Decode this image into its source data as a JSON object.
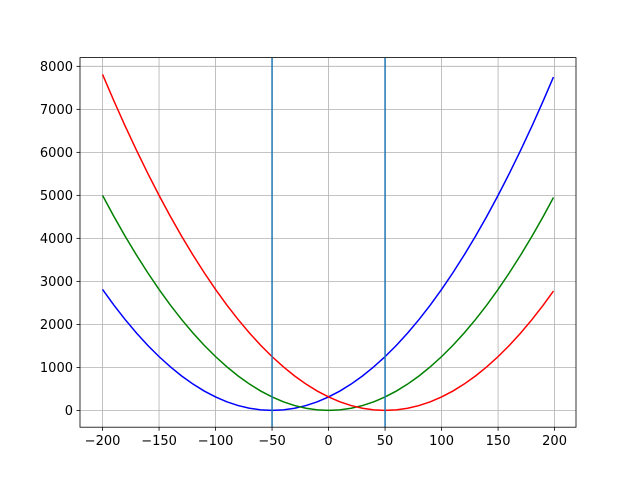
{
  "chart_data": {
    "type": "line",
    "x": [
      -200,
      -190,
      -180,
      -170,
      -160,
      -150,
      -140,
      -130,
      -120,
      -110,
      -100,
      -90,
      -80,
      -70,
      -60,
      -50,
      -40,
      -30,
      -20,
      -10,
      0,
      10,
      20,
      30,
      40,
      50,
      60,
      70,
      80,
      90,
      100,
      110,
      120,
      130,
      140,
      150,
      160,
      170,
      180,
      190,
      199
    ],
    "series": [
      {
        "color": "#0000ff",
        "values": [
          2812.5,
          2450,
          2112.5,
          1800,
          1512.5,
          1250,
          1012.5,
          800,
          612.5,
          450,
          312.5,
          200,
          112.5,
          50,
          12.5,
          0,
          12.5,
          50,
          112.5,
          200,
          312.5,
          450,
          612.5,
          800,
          1012.5,
          1250,
          1512.5,
          1800,
          2112.5,
          2450,
          2812.5,
          3200,
          3612.5,
          4050,
          4512.5,
          5000,
          5512.5,
          6050,
          6612.5,
          7200,
          7750
        ]
      },
      {
        "color": "#008000",
        "values": [
          5000,
          4512.5,
          4050,
          3612.5,
          3200,
          2812.5,
          2450,
          2112.5,
          1800,
          1512.5,
          1250,
          1012.5,
          800,
          612.5,
          450,
          312.5,
          200,
          112.5,
          50,
          12.5,
          0,
          12.5,
          50,
          112.5,
          200,
          312.5,
          450,
          612.5,
          800,
          1012.5,
          1250,
          1512.5,
          1800,
          2112.5,
          2450,
          2812.5,
          3200,
          3612.5,
          4050,
          4512.5,
          4950
        ]
      },
      {
        "color": "#ff0000",
        "values": [
          7812.5,
          7200,
          6612.5,
          6050,
          5512.5,
          5000,
          4512.5,
          4050,
          3612.5,
          3200,
          2812.5,
          2450,
          2112.5,
          1800,
          1512.5,
          1250,
          1012.5,
          800,
          612.5,
          450,
          312.5,
          200,
          112.5,
          50,
          12.5,
          0,
          12.5,
          50,
          112.5,
          200,
          312.5,
          450,
          612.5,
          800,
          1012.5,
          1250,
          1512.5,
          1800,
          2112.5,
          2450,
          2775
        ]
      }
    ],
    "vlines": [
      {
        "x": -50,
        "color": "#1f77b4"
      },
      {
        "x": 50,
        "color": "#1f77b4"
      }
    ],
    "xlim": [
      -219.95,
      218.95
    ],
    "ylim": [
      -390.6,
      8203.1
    ],
    "xticks": [
      {
        "value": -200,
        "label": "−200"
      },
      {
        "value": -150,
        "label": "−150"
      },
      {
        "value": -100,
        "label": "−100"
      },
      {
        "value": -50,
        "label": "−50"
      },
      0,
      50,
      100,
      150,
      200
    ],
    "yticks": [
      0,
      1000,
      2000,
      3000,
      4000,
      5000,
      6000,
      7000,
      8000
    ],
    "grid": true
  }
}
